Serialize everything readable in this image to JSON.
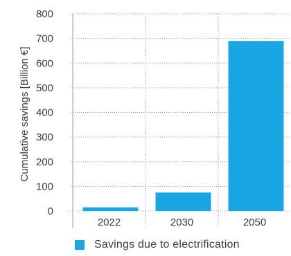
{
  "chart_data": {
    "type": "bar",
    "title": "",
    "xlabel": "",
    "ylabel": "Cumulative savings [Billion €]",
    "categories": [
      "2022",
      "2030",
      "2050"
    ],
    "series": [
      {
        "name": "Savings due to electrification",
        "values": [
          15,
          75,
          690
        ]
      }
    ],
    "ylim": [
      0,
      800
    ],
    "yticks": [
      "0",
      "100",
      "200",
      "300",
      "400",
      "500",
      "600",
      "700",
      "800"
    ],
    "grid": "vertical dotted separators between categories",
    "legend_position": "bottom",
    "colors": {
      "bar": "#1aa6e3",
      "grid": "#9a9a9a",
      "text": "#3c3c3c"
    }
  }
}
